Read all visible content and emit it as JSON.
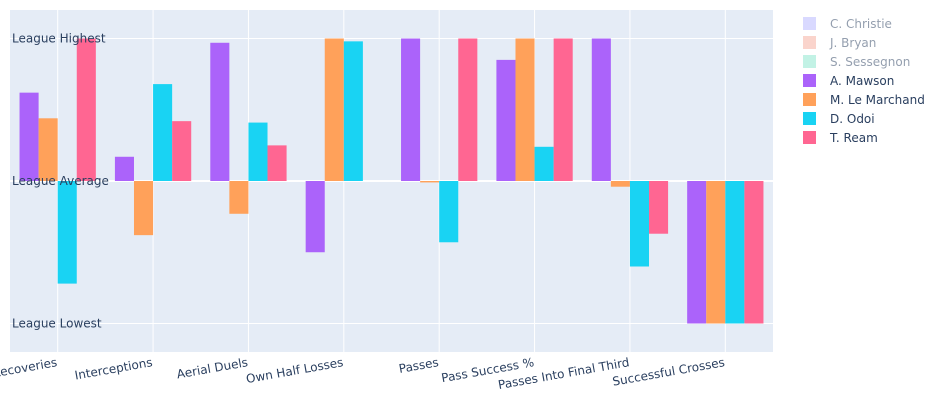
{
  "chart_data": {
    "type": "bar",
    "categories": [
      "Ball Recoveries",
      "Interceptions",
      "Aerial Duels",
      "Own Half Losses",
      "Passes",
      "Pass Success %",
      "Passes Into Final Third",
      "Successful Crosses"
    ],
    "y_tick_labels": [
      "League Highest",
      "League Average",
      "League Lowest"
    ],
    "y_tick_values": [
      1,
      0,
      -1
    ],
    "ylim": [
      -1.2,
      1.2
    ],
    "grid": true,
    "legend_position": "right",
    "series": [
      {
        "name": "C. Christie",
        "color": "#b3b3ff",
        "visible": false,
        "values": [
          null,
          null,
          null,
          null,
          null,
          null,
          null,
          null
        ]
      },
      {
        "name": "J. Bryan",
        "color": "#f5a99a",
        "visible": false,
        "values": [
          null,
          null,
          null,
          null,
          null,
          null,
          null,
          null
        ]
      },
      {
        "name": "S. Sessegnon",
        "color": "#85e5cc",
        "visible": false,
        "values": [
          null,
          null,
          null,
          null,
          null,
          null,
          null,
          null
        ]
      },
      {
        "name": "A. Mawson",
        "color": "#ab63fa",
        "visible": true,
        "values": [
          0.62,
          0.17,
          0.97,
          -0.5,
          1.0,
          0.85,
          1.0,
          -1.0
        ]
      },
      {
        "name": "M. Le Marchand",
        "color": "#ffa15a",
        "visible": true,
        "values": [
          0.44,
          -0.38,
          -0.23,
          1.0,
          -0.01,
          1.0,
          -0.04,
          -1.0
        ]
      },
      {
        "name": "D. Odoi",
        "color": "#19d3f3",
        "visible": true,
        "values": [
          -0.72,
          0.68,
          0.41,
          0.98,
          -0.43,
          0.24,
          -0.6,
          -1.0
        ]
      },
      {
        "name": "T. Ream",
        "color": "#ff6692",
        "visible": true,
        "values": [
          1.0,
          0.42,
          0.25,
          null,
          1.0,
          1.0,
          -0.37,
          -1.0
        ]
      }
    ]
  }
}
